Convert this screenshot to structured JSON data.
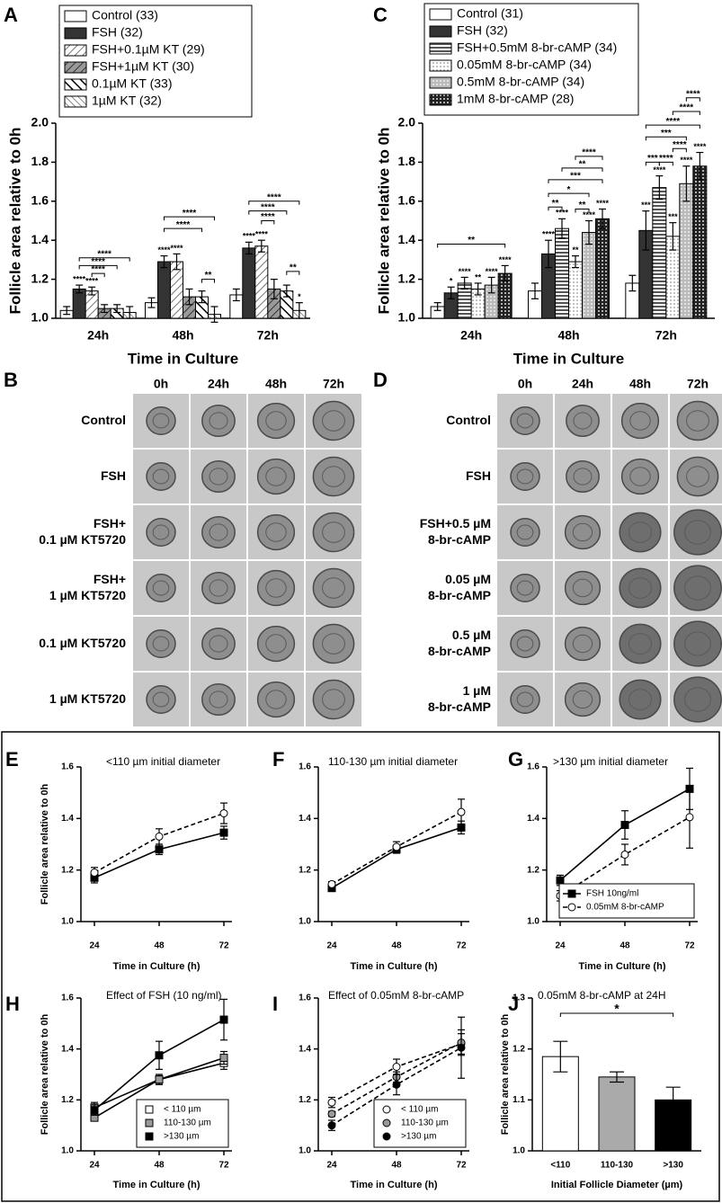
{
  "chart_data": [
    {
      "panel": "A",
      "type": "bar",
      "categories": [
        "24h",
        "48h",
        "72h"
      ],
      "ylabel": "Follicle area relative to 0h",
      "xlabel": "Time in Culture",
      "ylim": [
        1,
        2
      ],
      "yticks": [
        {
          "value": 1,
          "label": "1.0"
        },
        {
          "value": 1.2,
          "label": "1.2"
        },
        {
          "value": 1.4,
          "label": "1.4"
        },
        {
          "value": 1.6,
          "label": "1.6"
        },
        {
          "value": 1.8,
          "label": "1.8"
        },
        {
          "value": 2,
          "label": "2.0"
        }
      ],
      "legend": "upper left",
      "series": [
        {
          "name": "Control (33)",
          "color": "#ffffff",
          "values": [
            1.04,
            1.08,
            1.12
          ],
          "errors": [
            0.02,
            0.025,
            0.03
          ]
        },
        {
          "name": "FSH (32)",
          "color": "#333333",
          "values": [
            1.15,
            1.29,
            1.36
          ],
          "errors": [
            0.02,
            0.03,
            0.03
          ],
          "stars": [
            "****",
            "****",
            "****"
          ]
        },
        {
          "name": "FSH+0.1µM KT (29)",
          "color": "#ffffff",
          "pattern": "diag-light",
          "values": [
            1.14,
            1.29,
            1.37
          ],
          "errors": [
            0.02,
            0.04,
            0.03
          ],
          "stars": [
            "****",
            "****",
            "****"
          ]
        },
        {
          "name": "FSH+1µM KT (30)",
          "color": "#999999",
          "pattern": "diag-dark",
          "values": [
            1.05,
            1.11,
            1.15
          ],
          "errors": [
            0.02,
            0.04,
            0.05
          ]
        },
        {
          "name": "0.1µM KT (33)",
          "color": "#ffffff",
          "pattern": "back-bold",
          "values": [
            1.05,
            1.11,
            1.14
          ],
          "errors": [
            0.02,
            0.03,
            0.03
          ]
        },
        {
          "name": "1µM KT (32)",
          "color": "#ffffff",
          "pattern": "back-light",
          "values": [
            1.03,
            1.02,
            1.04
          ],
          "errors": [
            0.03,
            0.04,
            0.04
          ],
          "stars": [
            null,
            null,
            "*"
          ]
        }
      ],
      "brackets": [
        "****",
        "****",
        "****",
        "****",
        "****",
        "**",
        "****",
        "****",
        "****",
        "**"
      ]
    },
    {
      "panel": "C",
      "type": "bar",
      "categories": [
        "24h",
        "48h",
        "72h"
      ],
      "ylabel": "Follicle area relative to 0h",
      "xlabel": "Time in Culture",
      "ylim": [
        1,
        2
      ],
      "yticks": [
        {
          "value": 1,
          "label": "1.0"
        },
        {
          "value": 1.2,
          "label": "1.2"
        },
        {
          "value": 1.4,
          "label": "1.4"
        },
        {
          "value": 1.6,
          "label": "1.6"
        },
        {
          "value": 1.8,
          "label": "1.8"
        },
        {
          "value": 2,
          "label": "2.0"
        }
      ],
      "legend": "upper left",
      "series": [
        {
          "name": "Control (31)",
          "color": "#ffffff",
          "values": [
            1.06,
            1.14,
            1.18
          ],
          "errors": [
            0.02,
            0.04,
            0.04
          ]
        },
        {
          "name": "FSH (32)",
          "color": "#333333",
          "values": [
            1.13,
            1.33,
            1.45
          ],
          "errors": [
            0.03,
            0.07,
            0.1
          ],
          "stars": [
            "*",
            "****",
            "***"
          ]
        },
        {
          "name": "FSH+0.5mM 8-br-cAMP (34)",
          "color": "#777777",
          "pattern": "hstripe",
          "values": [
            1.18,
            1.46,
            1.67
          ],
          "errors": [
            0.03,
            0.05,
            0.06
          ],
          "stars": [
            "****",
            "****",
            "****"
          ]
        },
        {
          "name": "0.05mM 8-br-cAMP (34)",
          "color": "#ffffff",
          "pattern": "dots-white",
          "values": [
            1.15,
            1.29,
            1.42
          ],
          "errors": [
            0.03,
            0.03,
            0.07
          ],
          "stars": [
            "**",
            "**",
            "***"
          ]
        },
        {
          "name": "0.5mM 8-br-cAMP (34)",
          "color": "#bbbbbb",
          "pattern": "dots-gray",
          "values": [
            1.17,
            1.44,
            1.69
          ],
          "errors": [
            0.04,
            0.06,
            0.09
          ],
          "stars": [
            "****",
            "****",
            "****"
          ]
        },
        {
          "name": "1mM 8-br-cAMP (28)",
          "color": "#333333",
          "pattern": "dots-dark",
          "values": [
            1.23,
            1.51,
            1.78
          ],
          "errors": [
            0.04,
            0.05,
            0.07
          ],
          "stars": [
            "****",
            "****",
            "****"
          ]
        }
      ],
      "brackets": [
        "**",
        "**",
        "**",
        "*",
        "***",
        "**",
        "****",
        "***",
        "****",
        "***",
        "****",
        "****",
        "****",
        "****"
      ]
    },
    {
      "panel": "E",
      "type": "line",
      "title": "<110 µm initial diameter",
      "ylabel": "Follicle area relative to 0h",
      "xlabel": "Time in Culture (h)",
      "x": [
        24,
        48,
        72
      ],
      "xlim": [
        19,
        75
      ],
      "xticks": [
        24,
        48,
        72
      ],
      "ylim": [
        1,
        1.6
      ],
      "yticks": [
        {
          "value": 1,
          "label": "1.0"
        },
        {
          "value": 1.2,
          "label": "1.2"
        },
        {
          "value": 1.4,
          "label": "1.4"
        },
        {
          "value": 1.6,
          "label": "1.6"
        }
      ],
      "series": [
        {
          "color": "#000000",
          "marker": "square",
          "dash": false,
          "values": [
            1.17,
            1.28,
            1.345
          ],
          "errors": [
            0.02,
            0.02,
            0.025
          ]
        },
        {
          "color": "#ffffff",
          "marker": "circle",
          "dash": true,
          "values": [
            1.19,
            1.33,
            1.42
          ],
          "errors": [
            0.02,
            0.03,
            0.04
          ]
        }
      ]
    },
    {
      "panel": "F",
      "type": "line",
      "title": "110-130 µm initial diameter",
      "xlabel": "Time in Culture (h)",
      "x": [
        24,
        48,
        72
      ],
      "xlim": [
        19,
        75
      ],
      "xticks": [
        24,
        48,
        72
      ],
      "ylim": [
        1,
        1.6
      ],
      "yticks": [
        {
          "value": 1,
          "label": "1.0"
        },
        {
          "value": 1.2,
          "label": "1.2"
        },
        {
          "value": 1.4,
          "label": "1.4"
        },
        {
          "value": 1.6,
          "label": "1.6"
        }
      ],
      "series": [
        {
          "color": "#000000",
          "marker": "square",
          "dash": false,
          "values": [
            1.13,
            1.28,
            1.365
          ],
          "errors": [
            0.01,
            0.015,
            0.025
          ]
        },
        {
          "color": "#ffffff",
          "marker": "circle",
          "dash": true,
          "values": [
            1.145,
            1.29,
            1.425
          ],
          "errors": [
            0.01,
            0.02,
            0.05
          ]
        }
      ]
    },
    {
      "panel": "G",
      "type": "line",
      "title": ">130 µm initial diameter",
      "xlabel": "Time in Culture (h)",
      "x": [
        24,
        48,
        72
      ],
      "xlim": [
        19,
        75
      ],
      "xticks": [
        24,
        48,
        72
      ],
      "ylim": [
        1,
        1.6
      ],
      "yticks": [
        {
          "value": 1,
          "label": "1.0"
        },
        {
          "value": 1.2,
          "label": "1.2"
        },
        {
          "value": 1.4,
          "label": "1.4"
        },
        {
          "value": 1.6,
          "label": "1.6"
        }
      ],
      "legend": "lower right",
      "series": [
        {
          "name": "FSH 10ng/ml",
          "color": "#000000",
          "marker": "square",
          "dash": false,
          "values": [
            1.16,
            1.375,
            1.515
          ],
          "errors": [
            0.02,
            0.055,
            0.08
          ]
        },
        {
          "name": "0.05mM 8-br-cAMP",
          "color": "#ffffff",
          "marker": "circle",
          "dash": true,
          "values": [
            1.1,
            1.26,
            1.405
          ],
          "errors": [
            0.02,
            0.04,
            0.12
          ]
        }
      ]
    },
    {
      "panel": "H",
      "type": "line",
      "title": "Effect of FSH (10 ng/ml)",
      "ylabel": "Follicle area relative to 0h",
      "xlabel": "Time in Culture (h)",
      "x": [
        24,
        48,
        72
      ],
      "xlim": [
        19,
        75
      ],
      "xticks": [
        24,
        48,
        72
      ],
      "ylim": [
        1,
        1.6
      ],
      "yticks": [
        {
          "value": 1,
          "label": "1.0"
        },
        {
          "value": 1.2,
          "label": "1.2"
        },
        {
          "value": 1.4,
          "label": "1.4"
        },
        {
          "value": 1.6,
          "label": "1.6"
        }
      ],
      "legend": "lower right",
      "series": [
        {
          "name": "< 110 µm",
          "color": "#ffffff",
          "marker": "square",
          "dash": false,
          "values": [
            1.17,
            1.28,
            1.345
          ],
          "errors": [
            0.02,
            0.02,
            0.025
          ]
        },
        {
          "name": "110-130 µm",
          "color": "#999999",
          "marker": "square",
          "dash": false,
          "values": [
            1.13,
            1.28,
            1.365
          ],
          "errors": [
            0.01,
            0.015,
            0.025
          ]
        },
        {
          "name": ">130 µm",
          "color": "#000000",
          "marker": "square",
          "dash": false,
          "values": [
            1.16,
            1.375,
            1.515
          ],
          "errors": [
            0.02,
            0.055,
            0.08
          ]
        }
      ]
    },
    {
      "panel": "I",
      "type": "line",
      "title": "Effect of 0.05mM 8-br-cAMP",
      "xlabel": "Time in Culture (h)",
      "x": [
        24,
        48,
        72
      ],
      "xlim": [
        19,
        75
      ],
      "xticks": [
        24,
        48,
        72
      ],
      "ylim": [
        1,
        1.6
      ],
      "yticks": [
        {
          "value": 1,
          "label": "1.0"
        },
        {
          "value": 1.2,
          "label": "1.2"
        },
        {
          "value": 1.4,
          "label": "1.4"
        },
        {
          "value": 1.6,
          "label": "1.6"
        }
      ],
      "legend": "lower right",
      "series": [
        {
          "name": "< 110 µm",
          "color": "#ffffff",
          "marker": "circle",
          "dash": true,
          "values": [
            1.19,
            1.33,
            1.42
          ],
          "errors": [
            0.02,
            0.03,
            0.04
          ]
        },
        {
          "name": "110-130 µm",
          "color": "#999999",
          "marker": "circle",
          "dash": true,
          "values": [
            1.145,
            1.29,
            1.425
          ],
          "errors": [
            0.01,
            0.02,
            0.05
          ]
        },
        {
          "name": ">130 µm",
          "color": "#000000",
          "marker": "circle",
          "dash": true,
          "values": [
            1.1,
            1.26,
            1.405
          ],
          "errors": [
            0.02,
            0.04,
            0.12
          ]
        }
      ]
    },
    {
      "panel": "J",
      "type": "bar",
      "title": "0.05mM 8-br-cAMP at 24H",
      "ylabel": "Follicle area relative to 0h",
      "xlabel": "Initial Follicle Diameter (µm)",
      "categories": [
        "<110",
        "110-130",
        ">130"
      ],
      "values": [
        1.185,
        1.145,
        1.1
      ],
      "errors": [
        0.03,
        0.01,
        0.025
      ],
      "colors": [
        "#ffffff",
        "#aaaaaa",
        "#000000"
      ],
      "ylim": [
        1,
        1.3
      ],
      "yticks": [
        {
          "value": 1,
          "label": "1.0"
        },
        {
          "value": 1.1,
          "label": "1.1"
        },
        {
          "value": 1.2,
          "label": "1.2"
        },
        {
          "value": 1.3,
          "label": "1.3"
        }
      ],
      "brackets": [
        "*"
      ]
    }
  ],
  "image_panels": [
    {
      "panel": "B",
      "columns": [
        "0h",
        "24h",
        "48h",
        "72h"
      ],
      "rows": [
        [
          "Control"
        ],
        [
          "FSH"
        ],
        [
          "FSH+",
          "0.1 µM KT5720"
        ],
        [
          "FSH+",
          "1 µM KT5720"
        ],
        [
          "0.1 µM KT5720"
        ],
        [
          "1 µM KT5720"
        ]
      ]
    },
    {
      "panel": "D",
      "columns": [
        "0h",
        "24h",
        "48h",
        "72h"
      ],
      "rows": [
        [
          "Control"
        ],
        [
          "FSH"
        ],
        [
          "FSH+0.5 µM",
          "8-br-cAMP"
        ],
        [
          "0.05 µM",
          "8-br-cAMP"
        ],
        [
          "0.5 µM",
          "8-br-cAMP"
        ],
        [
          "1 µM",
          "8-br-cAMP"
        ]
      ]
    }
  ]
}
